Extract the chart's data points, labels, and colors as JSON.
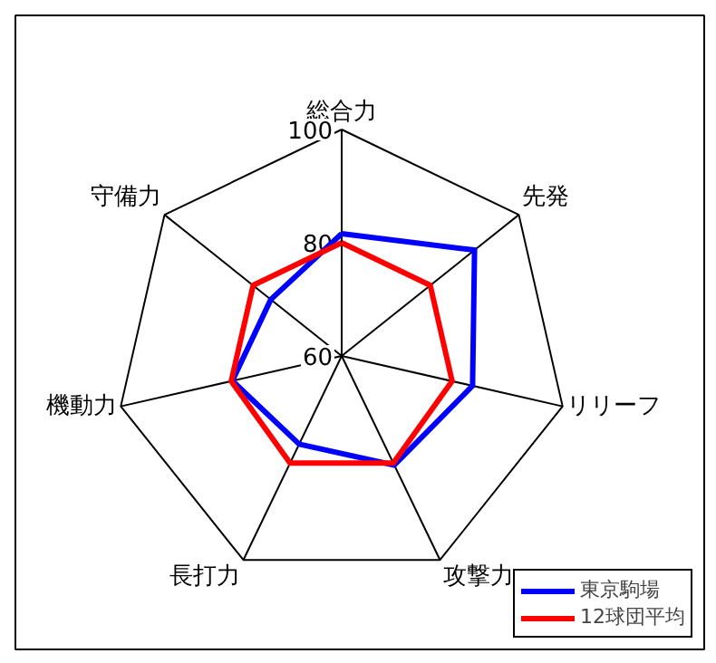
{
  "chart_data": {
    "type": "radar",
    "categories": [
      "総合力",
      "先発",
      "リリーフ",
      "攻撃力",
      "長打力",
      "機動力",
      "守備力"
    ],
    "ylim": [
      60,
      100
    ],
    "yticks": [
      60,
      80,
      100
    ],
    "grid": true,
    "legend": "bottom right",
    "line_style": "solid",
    "marker": "none",
    "series": [
      {
        "name": "東京駒場",
        "color": "#0000ff",
        "values": [
          81.6,
          90,
          83.7,
          81.4,
          77.3,
          79.8,
          76
        ]
      },
      {
        "name": "12球団平均",
        "color": "#ff0000",
        "values": [
          80,
          80,
          80,
          81,
          81,
          80,
          80
        ]
      }
    ]
  }
}
